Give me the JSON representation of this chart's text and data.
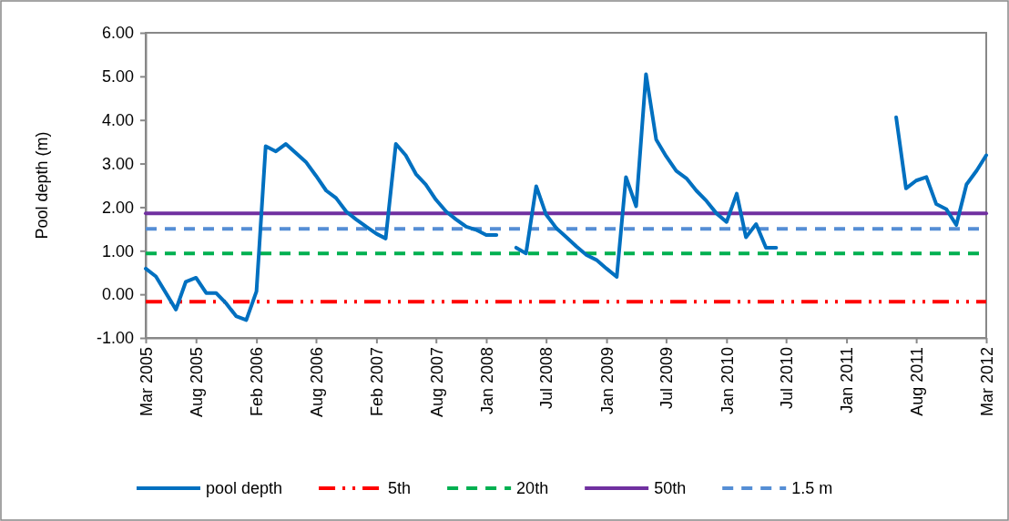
{
  "chart_data": {
    "type": "line",
    "ylabel": "Pool depth (m)",
    "xlim": [
      "2005-03",
      "2012-03"
    ],
    "xticks": [
      {
        "value": "2005-03",
        "label": "Mar 2005"
      },
      {
        "value": "2005-08",
        "label": "Aug 2005"
      },
      {
        "value": "2006-02",
        "label": "Feb 2006"
      },
      {
        "value": "2006-08",
        "label": "Aug 2006"
      },
      {
        "value": "2007-02",
        "label": "Feb 2007"
      },
      {
        "value": "2007-08",
        "label": "Aug 2007"
      },
      {
        "value": "2008-01",
        "label": "Jan 2008"
      },
      {
        "value": "2008-07",
        "label": "Jul 2008"
      },
      {
        "value": "2009-01",
        "label": "Jan 2009"
      },
      {
        "value": "2009-07",
        "label": "Jul 2009"
      },
      {
        "value": "2010-01",
        "label": "Jan 2010"
      },
      {
        "value": "2010-07",
        "label": "Jul 2010"
      },
      {
        "value": "2011-01",
        "label": "Jan 2011"
      },
      {
        "value": "2011-08",
        "label": "Aug 2011"
      },
      {
        "value": "2012-03",
        "label": "Mar 2012"
      }
    ],
    "ylim": [
      -1,
      6
    ],
    "yticks": [
      {
        "value": -1,
        "label": "-1.00"
      },
      {
        "value": 0,
        "label": "0.00"
      },
      {
        "value": 1,
        "label": "1.00"
      },
      {
        "value": 2,
        "label": "2.00"
      },
      {
        "value": 3,
        "label": "3.00"
      },
      {
        "value": 4,
        "label": "4.00"
      },
      {
        "value": 5,
        "label": "5.00"
      },
      {
        "value": 6,
        "label": "6.00"
      }
    ],
    "grid": false,
    "legend": "bottom",
    "marker": "none",
    "series": [
      {
        "name": "pool depth",
        "color": "#0070c0",
        "line_style": "solid",
        "x": [
          "2005-03",
          "2005-04",
          "2005-06",
          "2005-07",
          "2005-08",
          "2005-09",
          "2005-10",
          "2005-11",
          "2005-12",
          "2006-01",
          "2006-02",
          "2006-03",
          "2006-04",
          "2006-05",
          "2006-06",
          "2006-07",
          "2006-08",
          "2006-09",
          "2006-10",
          "2006-11",
          "2006-12",
          "2007-01",
          "2007-02",
          "2007-03",
          "2007-04",
          "2007-05",
          "2007-06",
          "2007-07",
          "2007-08",
          "2007-09",
          "2007-10",
          "2007-11",
          "2007-12",
          "2008-01",
          "2008-02",
          "2008-03",
          "2008-04",
          "2008-05",
          "2008-06",
          "2008-07",
          "2008-08",
          "2008-09",
          "2008-10",
          "2008-11",
          "2008-12",
          "2009-01",
          "2009-02",
          "2009-03",
          "2009-04",
          "2009-05",
          "2009-06",
          "2009-07",
          "2009-08",
          "2009-09",
          "2009-10",
          "2009-11",
          "2009-12",
          "2010-01",
          "2010-02",
          "2010-03",
          "2010-04",
          "2010-05",
          "2010-06",
          "2010-07",
          "2011-06",
          "2011-07",
          "2011-08",
          "2011-09",
          "2011-10",
          "2011-11",
          "2011-12",
          "2012-01",
          "2012-02",
          "2012-03"
        ],
        "values": [
          0.59,
          0.41,
          -0.35,
          0.29,
          0.38,
          0.03,
          0.03,
          -0.21,
          -0.5,
          -0.59,
          0.07,
          3.4,
          3.28,
          3.45,
          3.24,
          3.04,
          2.72,
          2.38,
          2.21,
          1.9,
          1.72,
          1.55,
          1.39,
          1.28,
          3.45,
          3.19,
          2.76,
          2.52,
          2.17,
          1.9,
          1.72,
          1.55,
          1.48,
          1.36,
          1.36,
          null,
          1.07,
          0.94,
          2.48,
          1.83,
          1.52,
          1.31,
          1.1,
          0.9,
          0.79,
          0.59,
          0.4,
          2.69,
          2.02,
          5.05,
          3.55,
          3.17,
          2.83,
          2.66,
          2.38,
          2.14,
          1.86,
          1.66,
          2.31,
          1.31,
          1.61,
          1.07,
          1.07,
          null,
          4.06,
          2.43,
          2.61,
          2.69,
          2.07,
          1.95,
          1.59,
          2.52,
          2.84,
          3.19
        ]
      },
      {
        "name": "5th",
        "color": "#ff0000",
        "line_style": "dotted",
        "x": [
          "2005-03",
          "2012-03"
        ],
        "values": [
          -0.17,
          -0.17
        ]
      },
      {
        "name": "20th",
        "color": "#00b050",
        "line_style": "dashed",
        "x": [
          "2005-03",
          "2012-03"
        ],
        "values": [
          0.94,
          0.94
        ]
      },
      {
        "name": "50th",
        "color": "#7030a0",
        "line_style": "solid",
        "x": [
          "2005-03",
          "2012-03"
        ],
        "values": [
          1.86,
          1.86
        ]
      },
      {
        "name": "1.5 m",
        "color": "#558ed5",
        "line_style": "dashed",
        "x": [
          "2005-03",
          "2012-03"
        ],
        "values": [
          1.5,
          1.5
        ]
      }
    ]
  }
}
